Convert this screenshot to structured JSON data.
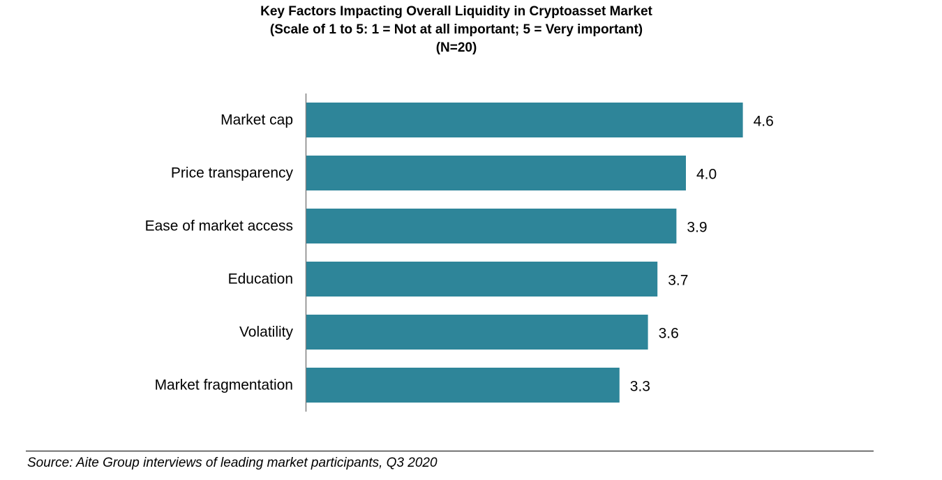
{
  "chart_data": {
    "type": "bar",
    "orientation": "horizontal",
    "title": "Key Factors Impacting Overall Liquidity in Cryptoasset Market",
    "subtitle": "(Scale of 1 to 5: 1 = Not at all important; 5 = Very important)",
    "sample": "(N=20)",
    "categories": [
      "Market cap",
      "Price transparency",
      "Ease of market access",
      "Education",
      "Volatility",
      "Market fragmentation"
    ],
    "values": [
      4.6,
      4.0,
      3.9,
      3.7,
      3.6,
      3.3
    ],
    "value_labels": [
      "4.6",
      "4.0",
      "3.9",
      "3.7",
      "3.6",
      "3.3"
    ],
    "xlim": [
      0,
      5
    ],
    "xlabel": "",
    "ylabel": "",
    "grid": false,
    "legend": "none",
    "bar_color": "#2e8599"
  },
  "source": "Source: Aite Group interviews of leading market participants, Q3 2020"
}
